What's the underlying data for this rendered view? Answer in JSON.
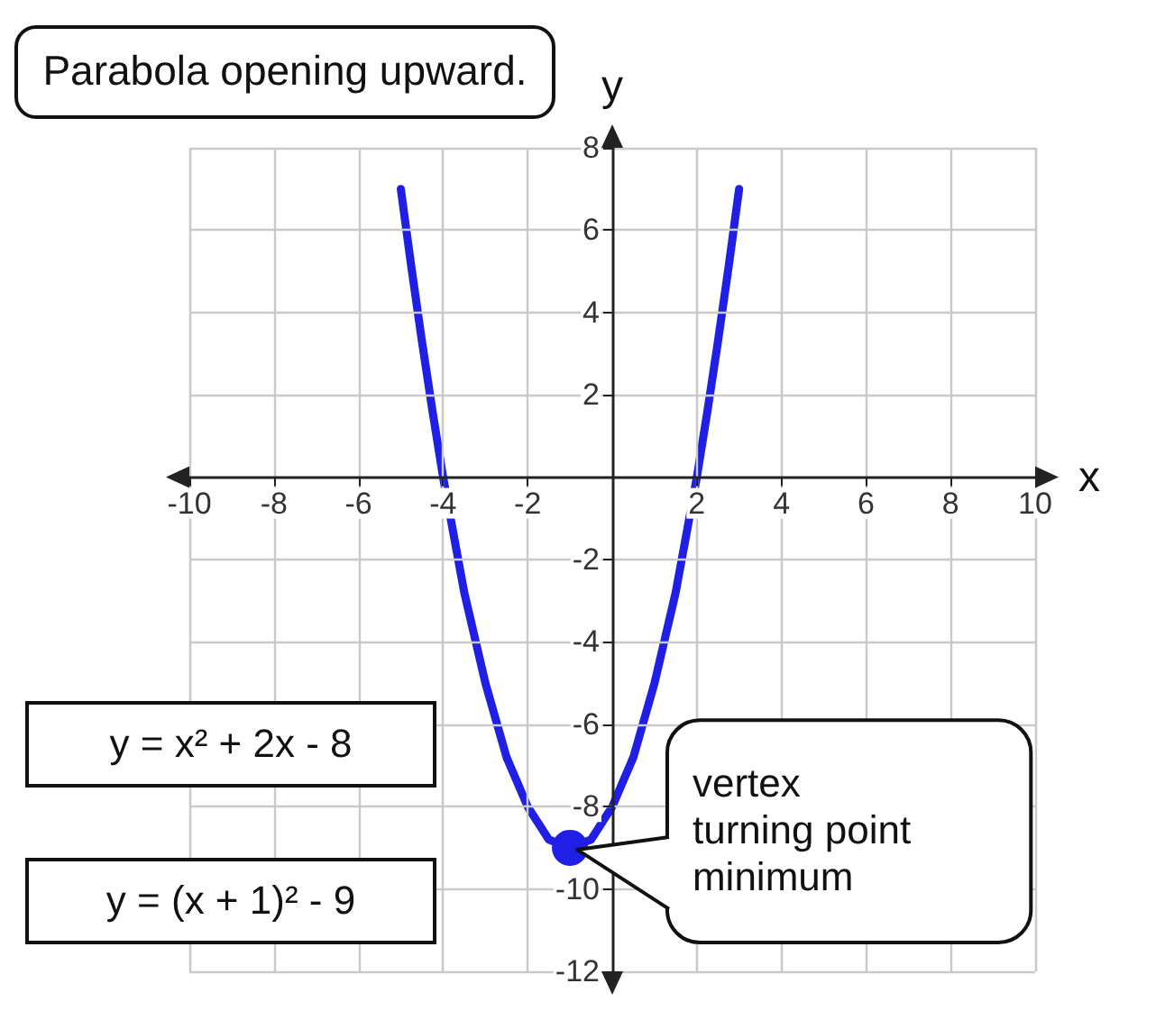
{
  "chart_data": {
    "type": "line",
    "xlabel": "x",
    "ylabel": "y",
    "xlim": [
      -10,
      10
    ],
    "ylim": [
      -12,
      8
    ],
    "xticks": [
      -10,
      -8,
      -6,
      -4,
      -2,
      2,
      4,
      6,
      8,
      10
    ],
    "yticks": [
      -12,
      -10,
      -8,
      -6,
      -4,
      -2,
      2,
      4,
      6,
      8
    ],
    "grid": true,
    "series": [
      {
        "color": "#1f1fe6",
        "marker": "none",
        "x": [
          -5,
          -4.75,
          -4.5,
          -4.25,
          -4,
          -3.75,
          -3.5,
          -3.25,
          -3,
          -2.75,
          -2.5,
          -2.25,
          -2,
          -1.75,
          -1.5,
          -1.25,
          -1,
          -0.75,
          -0.5,
          -0.25,
          0,
          0.25,
          0.5,
          0.75,
          1,
          1.25,
          1.5,
          1.75,
          2,
          2.25,
          2.5,
          2.75,
          3
        ],
        "values": [
          7,
          5.1,
          3.3,
          1.6,
          0,
          -1.4,
          -2.8,
          -3.9,
          -5,
          -5.9,
          -6.8,
          -7.4,
          -8,
          -8.4,
          -8.8,
          -8.9,
          -9,
          -8.9,
          -8.8,
          -8.4,
          -8,
          -7.4,
          -6.8,
          -5.9,
          -5,
          -3.9,
          -2.8,
          -1.4,
          0,
          1.6,
          3.3,
          5.1,
          7
        ]
      },
      {
        "type": "scatter",
        "color": "#1f1fe6",
        "marker": "circle",
        "x": [
          -1
        ],
        "values": [
          -9
        ]
      }
    ],
    "annotations": [
      "Parabola opening upward.",
      "y = x² + 2x - 8",
      "y = (x + 1)² - 9",
      "vertex\nturning point\nminimum"
    ]
  }
}
